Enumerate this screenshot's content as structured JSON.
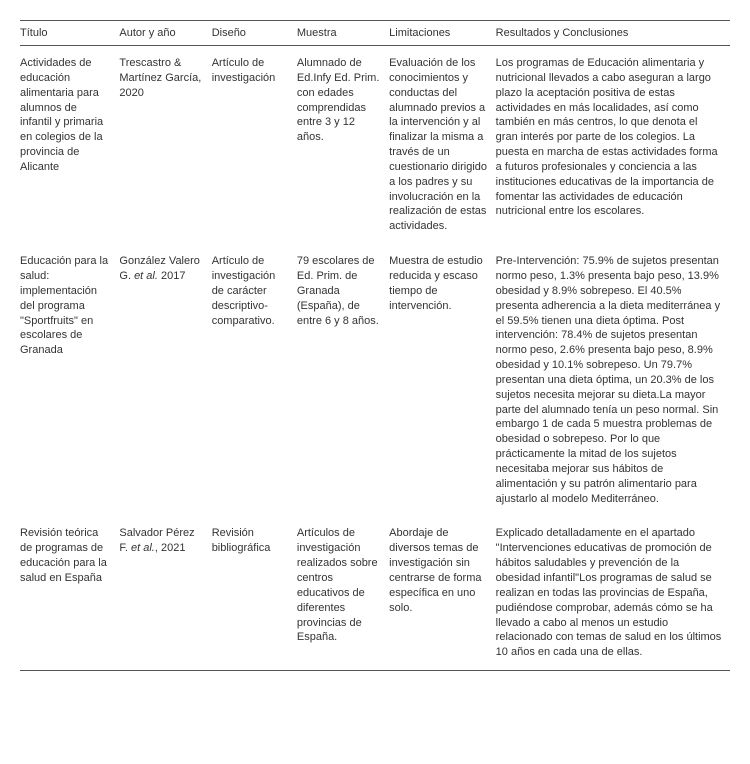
{
  "table": {
    "columns": [
      "Título",
      "Autor y año",
      "Diseño",
      "Muestra",
      "Limitaciones",
      "Resultados y Conclusiones"
    ],
    "rows": [
      {
        "titulo": "Actividades de educación alimentaria para alumnos de infantil y primaria en colegios de la provincia de Alicante",
        "autor": "Trescastro & Martínez García, 2020",
        "diseno": "Artículo de investigación",
        "muestra": "Alumnado de Ed.Infy Ed. Prim. con edades comprendidas entre 3 y 12 años.",
        "limitaciones": "Evaluación de los conocimientos y conductas del alumnado previos a la intervención y al finalizar la misma a través de un cuestionario dirigido a los padres y su involucración en la realización de estas actividades.",
        "resultados": "Los programas de Educación alimentaria y nutricional llevados a cabo aseguran a largo plazo la aceptación positiva de estas actividades en más localidades, así como también en más centros, lo que denota el gran interés por parte de los colegios. La puesta en marcha de estas actividades forma a futuros profesionales y conciencia a las instituciones educativas de la importancia de fomentar las actividades de educación nutricional entre los escolares."
      },
      {
        "titulo": "Educación para la salud: implementación del programa \"Sportfruits\" en escolares de Granada",
        "autor_pre": "González Valero G. ",
        "autor_italic": "et al.",
        "autor_post": " 2017",
        "diseno": "Artículo de investigación de carácter descriptivo-comparativo.",
        "muestra": "79 escolares de Ed. Prim. de Granada (España), de entre 6 y 8 años.",
        "limitaciones": "Muestra de estudio reducida y escaso tiempo de intervención.",
        "resultados": "Pre-Intervención: 75.9% de sujetos presentan normo peso, 1.3% presenta bajo peso, 13.9% obesidad y 8.9% sobrepeso. El 40.5% presenta adherencia a la dieta mediterránea y el 59.5% tienen una dieta óptima. Post intervención: 78.4% de sujetos presentan normo peso, 2.6% presenta bajo peso, 8.9% obesidad y 10.1% sobrepeso. Un 79.7% presentan una dieta óptima, un 20.3% de los sujetos necesita mejorar su dieta.La mayor parte del alumnado tenía un peso normal. Sin embargo 1 de cada 5 muestra problemas de obesidad o sobrepeso. Por lo que prácticamente la mitad de los sujetos necesitaba mejorar sus hábitos de alimentación y su patrón alimentario para ajustarlo al modelo Mediterráneo."
      },
      {
        "titulo": "Revisión teórica de programas de educación para la salud en España",
        "autor_pre": "Salvador Pérez F. ",
        "autor_italic": "et al.",
        "autor_post": ", 2021",
        "diseno": "Revisión bibliográfica",
        "muestra": "Artículos de investigación realizados sobre centros educativos de diferentes provincias de España.",
        "limitaciones": "Abordaje de diversos temas de investigación sin centrarse de forma específica en uno solo.",
        "resultados": "Explicado detalladamente en el apartado \"Intervenciones educativas de promoción de hábitos saludables y prevención de la obesidad infantil\"Los programas de salud se realizan en todas las provincias de España, pudiéndose comprobar, además cómo se ha llevado a cabo al menos un estudio relacionado con temas de salud en los últimos 10 años en cada una de ellas."
      }
    ]
  },
  "style": {
    "background_color": "#ffffff",
    "text_color": "#333333",
    "border_color": "#555555",
    "font_size_pt": 8.5,
    "line_height": 1.35,
    "column_widths_pct": [
      14,
      13,
      12,
      13,
      15,
      33
    ]
  }
}
